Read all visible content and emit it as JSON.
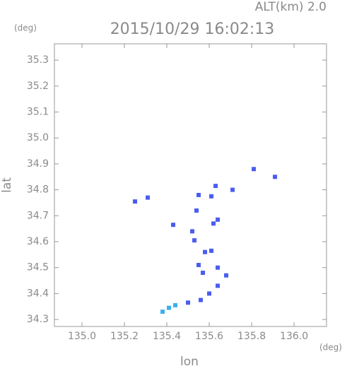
{
  "chart_data": {
    "type": "scatter",
    "title": "2015/10/29 16:02:13",
    "subtitle": "ALT(km) 2.0",
    "x_label": "lon",
    "y_label": "lat",
    "x_unit": "(deg)",
    "y_unit": "(deg)",
    "xlim": [
      134.87,
      136.153
    ],
    "ylim": [
      34.273,
      35.363
    ],
    "xticks": [
      {
        "value": 135,
        "label": "135.0"
      },
      135.2,
      135.4,
      135.6,
      135.8,
      {
        "value": 136,
        "label": "136.0"
      }
    ],
    "yticks": [
      34.3,
      34.4,
      34.5,
      34.6,
      34.7,
      34.8,
      34.9,
      {
        "value": 35,
        "label": "35.0"
      },
      35.1,
      35.2,
      35.3
    ],
    "series": [
      {
        "color": "#4a5cf0",
        "x": [
          135.25,
          135.31,
          135.91,
          135.81,
          135.63,
          135.61,
          135.55,
          135.71,
          135.54,
          135.64,
          135.43,
          135.52,
          135.62,
          135.53,
          135.58,
          135.61,
          135.55,
          135.57,
          135.64,
          135.68,
          135.64,
          135.6,
          135.56,
          135.5
        ],
        "y": [
          34.755,
          34.77,
          34.85,
          34.88,
          34.815,
          34.775,
          34.78,
          34.8,
          34.72,
          34.685,
          34.665,
          34.64,
          34.67,
          34.605,
          34.56,
          34.565,
          34.51,
          34.48,
          34.5,
          34.47,
          34.43,
          34.4,
          34.375,
          34.365
        ]
      },
      {
        "color": "#3ab0f0",
        "x": [
          135.44,
          135.41,
          135.38
        ],
        "y": [
          34.355,
          34.345,
          34.33
        ]
      }
    ]
  }
}
